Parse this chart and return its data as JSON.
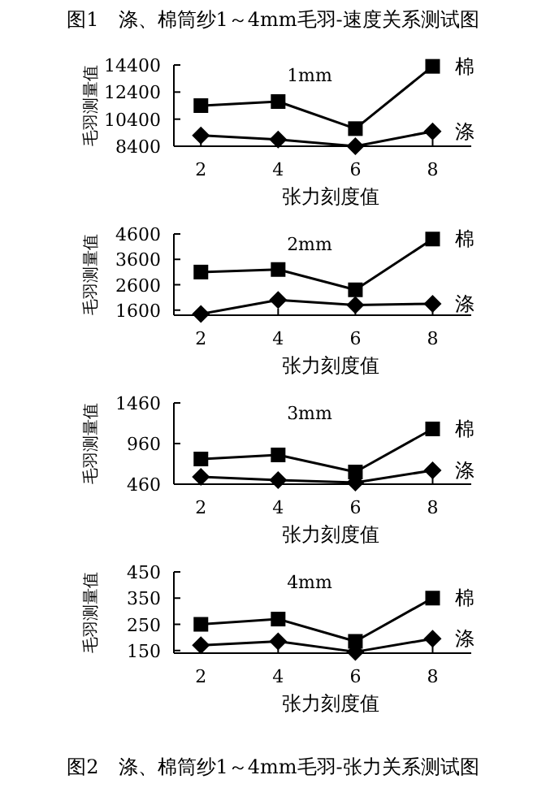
{
  "chart_data": [
    {
      "type": "line",
      "title": "1mm",
      "xlabel": "张力刻度值",
      "ylabel": "毛羽测量值",
      "annotations": [
        "图1　涤、棉筒纱1～4mm毛羽-速度关系测试图"
      ],
      "x": [
        2,
        4,
        6,
        8
      ],
      "xlim": [
        1.3,
        9
      ],
      "xticks": [
        2,
        4,
        6,
        8
      ],
      "ylim": [
        8400,
        14400
      ],
      "yticks": [
        8400,
        10400,
        12400,
        14400
      ],
      "grid": false,
      "line_style": "solid",
      "series": [
        {
          "name": "棉",
          "color": "#000000",
          "marker": "square",
          "values": [
            11400,
            11700,
            9700,
            14300
          ]
        },
        {
          "name": "涤",
          "color": "#000000",
          "marker": "diamond",
          "values": [
            9200,
            8900,
            8400,
            9500
          ]
        }
      ]
    },
    {
      "type": "line",
      "title": "2mm",
      "xlabel": "张力刻度值",
      "ylabel": "毛羽测量值",
      "x": [
        2,
        4,
        6,
        8
      ],
      "xlim": [
        1.3,
        9
      ],
      "xticks": [
        2,
        4,
        6,
        8
      ],
      "ylim": [
        1400,
        4600
      ],
      "yticks": [
        1600,
        2600,
        3600,
        4600
      ],
      "grid": false,
      "line_style": "solid",
      "series": [
        {
          "name": "棉",
          "color": "#000000",
          "marker": "square",
          "values": [
            3100,
            3200,
            2400,
            4400
          ]
        },
        {
          "name": "涤",
          "color": "#000000",
          "marker": "diamond",
          "values": [
            1450,
            2000,
            1800,
            1850
          ]
        }
      ]
    },
    {
      "type": "line",
      "title": "3mm",
      "xlabel": "张力刻度值",
      "ylabel": "毛羽测量值",
      "x": [
        2,
        4,
        6,
        8
      ],
      "xlim": [
        1.3,
        9
      ],
      "xticks": [
        2,
        4,
        6,
        8
      ],
      "ylim": [
        460,
        1460
      ],
      "yticks": [
        460,
        960,
        1460
      ],
      "grid": false,
      "line_style": "solid",
      "series": [
        {
          "name": "棉",
          "color": "#000000",
          "marker": "square",
          "values": [
            770,
            820,
            610,
            1140
          ]
        },
        {
          "name": "涤",
          "color": "#000000",
          "marker": "diamond",
          "values": [
            550,
            510,
            480,
            630
          ]
        }
      ]
    },
    {
      "type": "line",
      "title": "4mm",
      "xlabel": "张力刻度值",
      "ylabel": "毛羽测量值",
      "annotations": [
        "图2　涤、棉筒纱1～4mm毛羽-张力关系测试图"
      ],
      "x": [
        2,
        4,
        6,
        8
      ],
      "xlim": [
        1.3,
        9
      ],
      "xticks": [
        2,
        4,
        6,
        8
      ],
      "ylim": [
        140,
        450
      ],
      "yticks": [
        150,
        250,
        350,
        450
      ],
      "grid": false,
      "line_style": "solid",
      "series": [
        {
          "name": "棉",
          "color": "#000000",
          "marker": "square",
          "values": [
            250,
            270,
            185,
            350
          ]
        },
        {
          "name": "涤",
          "color": "#000000",
          "marker": "diamond",
          "values": [
            170,
            185,
            145,
            195
          ]
        }
      ]
    }
  ]
}
